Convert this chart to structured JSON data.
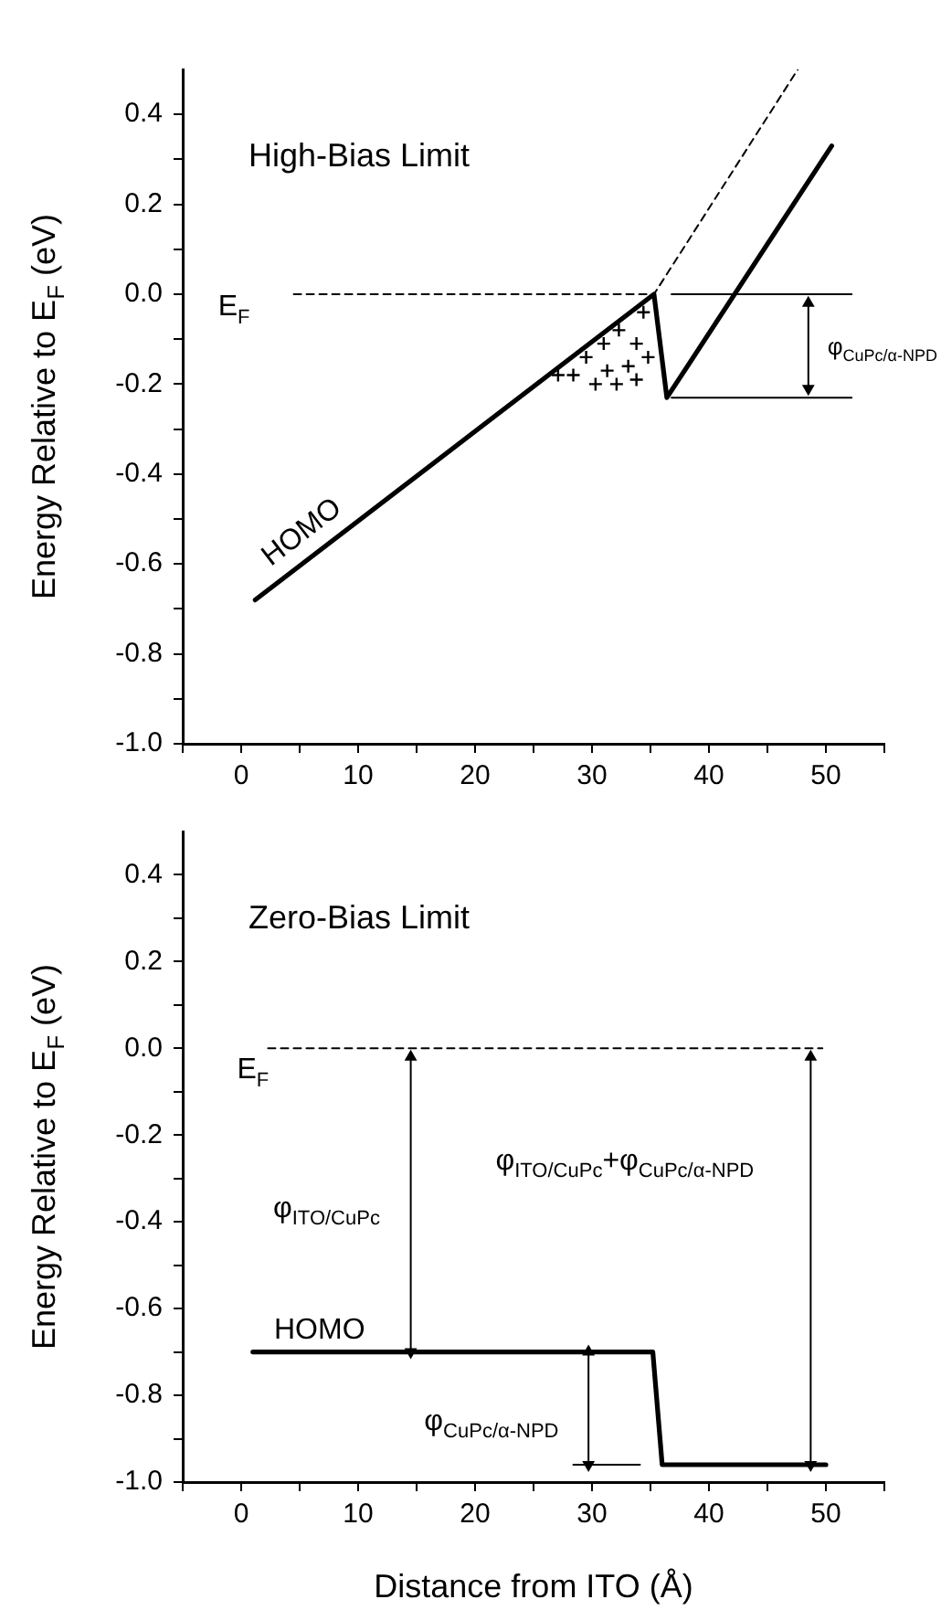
{
  "chart_data": [
    {
      "type": "line",
      "title": "High-Bias Limit",
      "ylabel": "Energy Relative to E$_{F}$ (eV)",
      "xlim": [
        -5,
        55
      ],
      "ylim": [
        -1,
        0.5
      ],
      "xticks": [
        {
          "value": -5,
          "label": null
        },
        0,
        {
          "value": 5,
          "label": null
        },
        10,
        {
          "value": 15,
          "label": null
        },
        20,
        {
          "value": 25,
          "label": null
        },
        30,
        {
          "value": 35,
          "label": null
        },
        40,
        {
          "value": 45,
          "label": null
        },
        50,
        {
          "value": 55,
          "label": null
        }
      ],
      "yticks": [
        {
          "value": -1,
          "label": "-1.0"
        },
        {
          "value": -0.9,
          "label": null
        },
        -0.8,
        {
          "value": -0.7,
          "label": null
        },
        -0.6,
        {
          "value": -0.5,
          "label": null
        },
        -0.4,
        {
          "value": -0.3,
          "label": null
        },
        -0.2,
        {
          "value": -0.1,
          "label": null
        },
        {
          "value": 0,
          "label": "0.0"
        },
        {
          "value": 0.1,
          "label": null
        },
        0.2,
        {
          "value": 0.3,
          "label": null
        },
        0.4
      ],
      "series": [
        {
          "type": "line",
          "color": "#000000",
          "x": [
            1.2,
            35.3,
            36.4,
            50.5
          ],
          "values": [
            -0.68,
            0,
            -0.23,
            0.33
          ]
        },
        {
          "type": "line",
          "color": "#000000",
          "line_style": "dashed",
          "x": [
            4.5,
            35.3,
            47.6
          ],
          "values": [
            0,
            0,
            0.5
          ]
        },
        {
          "type": "line",
          "color": "#000000",
          "line_style": "solid",
          "x": [
            36.8,
            52.2
          ],
          "values": [
            0,
            0
          ]
        },
        {
          "type": "line",
          "color": "#000000",
          "line_style": "solid",
          "x": [
            36.8,
            52.2
          ],
          "values": [
            -0.23,
            -0.23
          ]
        },
        {
          "type": "line",
          "color": "#000000",
          "line_style": "solid",
          "marker": "triangle",
          "x": [
            48.5,
            48.5
          ],
          "values": [
            -0.02,
            -0.21
          ]
        },
        {
          "type": "scatter",
          "color": "#000000",
          "marker": "cross",
          "x": [
            27.1,
            28.4,
            29.5,
            30.3,
            31.0,
            31.3,
            32.1,
            32.3,
            33.1,
            33.8,
            33.8,
            34.8,
            34.4
          ],
          "values": [
            -0.18,
            -0.18,
            -0.14,
            -0.2,
            -0.11,
            -0.17,
            -0.2,
            -0.08,
            -0.16,
            -0.11,
            -0.19,
            -0.14,
            -0.04
          ]
        }
      ],
      "annotations": [
        "E$_{F}$",
        "HOMO",
        "φ$_{CuPc/α-NPD}$"
      ]
    },
    {
      "type": "line",
      "title": "Zero-Bias Limit",
      "xlabel": "Distance from ITO (Å)",
      "ylabel": "Energy Relative to E$_{F}$ (eV)",
      "xlim": [
        -5,
        55
      ],
      "ylim": [
        -1,
        0.5
      ],
      "xticks": [
        {
          "value": -5,
          "label": null
        },
        0,
        {
          "value": 5,
          "label": null
        },
        10,
        {
          "value": 15,
          "label": null
        },
        20,
        {
          "value": 25,
          "label": null
        },
        30,
        {
          "value": 35,
          "label": null
        },
        40,
        {
          "value": 45,
          "label": null
        },
        50,
        {
          "value": 55,
          "label": null
        }
      ],
      "yticks": [
        {
          "value": -1,
          "label": "-1.0"
        },
        {
          "value": -0.9,
          "label": null
        },
        -0.8,
        {
          "value": -0.7,
          "label": null
        },
        -0.6,
        {
          "value": -0.5,
          "label": null
        },
        -0.4,
        {
          "value": -0.3,
          "label": null
        },
        -0.2,
        {
          "value": -0.1,
          "label": null
        },
        {
          "value": 0,
          "label": "0.0"
        },
        {
          "value": 0.1,
          "label": null
        },
        0.2,
        {
          "value": 0.3,
          "label": null
        },
        0.4
      ],
      "series": [
        {
          "type": "line",
          "color": "#000000",
          "x": [
            1,
            35.2,
            36,
            50
          ],
          "values": [
            -0.7,
            -0.7,
            -0.96,
            -0.96
          ]
        },
        {
          "type": "line",
          "color": "#000000",
          "line_style": "dashed",
          "x": [
            2.3,
            49.7
          ],
          "values": [
            0,
            0
          ]
        },
        {
          "type": "line",
          "color": "#000000",
          "line_style": "solid",
          "x": [
            28.4,
            34.1
          ],
          "values": [
            -0.96,
            -0.96
          ]
        },
        {
          "type": "line",
          "color": "#000000",
          "line_style": "solid",
          "marker": "triangle",
          "x": [
            14.5,
            14.5
          ],
          "values": [
            -0.02,
            -0.7
          ]
        },
        {
          "type": "line",
          "color": "#000000",
          "line_style": "solid",
          "marker": "triangle",
          "x": [
            48.7,
            48.7
          ],
          "values": [
            -0.02,
            -0.96
          ]
        },
        {
          "type": "line",
          "color": "#000000",
          "line_style": "solid",
          "marker": "triangle",
          "x": [
            29.7,
            29.7
          ],
          "values": [
            -0.7,
            -0.96
          ]
        }
      ],
      "annotations": [
        "E$_{F}$",
        "HOMO",
        "φ$_{ITO/CuPc}$",
        "φ$_{ITO/CuPc}$+φ$_{CuPc/α-NPD}$",
        "φ$_{CuPc/α-NPD}$"
      ]
    }
  ]
}
